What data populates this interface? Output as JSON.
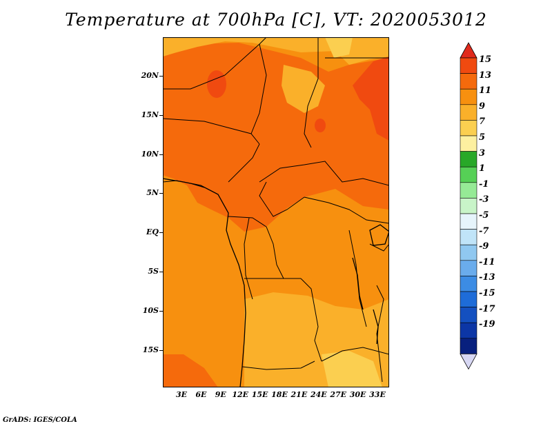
{
  "title": "Temperature at 700hPa [C], VT: 2020053012",
  "credit": "GrADS: IGES/COLA",
  "map": {
    "y_ticks": [
      "20N",
      "15N",
      "10N",
      "5N",
      "EQ",
      "5S",
      "10S",
      "15S"
    ],
    "x_ticks": [
      "3E",
      "6E",
      "9E",
      "12E",
      "15E",
      "18E",
      "21E",
      "24E",
      "27E",
      "30E",
      "33E"
    ]
  },
  "colorbar": {
    "labels": [
      "15",
      "13",
      "11",
      "9",
      "7",
      "5",
      "3",
      "1",
      "-1",
      "-3",
      "-5",
      "-7",
      "-9",
      "-11",
      "-13",
      "-15",
      "-17",
      "-19"
    ],
    "colors": [
      "#e02a1c",
      "#f04a10",
      "#f56a0c",
      "#f7900f",
      "#fab02a",
      "#fbcf50",
      "#fdf0a0",
      "#28a828",
      "#56d056",
      "#96ea96",
      "#c8f4c8",
      "#e6f4fb",
      "#c0e4f8",
      "#90c8f0",
      "#6aacec",
      "#3c8ce4",
      "#1e6cd8",
      "#1450c0",
      "#0c36a6",
      "#08207e",
      "#d8d8f4"
    ]
  }
}
